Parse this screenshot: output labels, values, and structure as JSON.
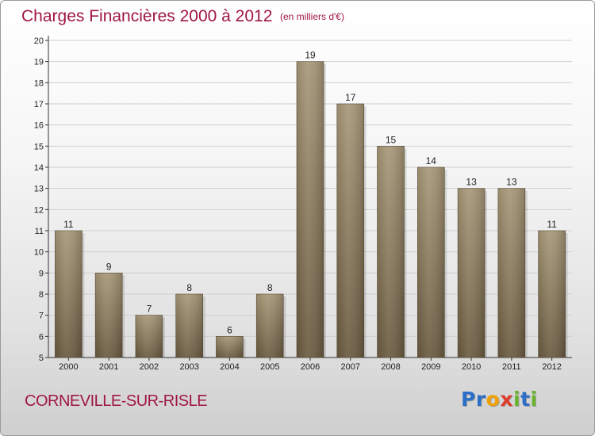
{
  "header": {
    "title": "Charges Financières 2000 à 2012",
    "unit": "(en milliers d'€)"
  },
  "footer": {
    "city": "CORNEVILLE-SUR-RISLE",
    "logo_letters": [
      {
        "char": "P",
        "color": "#2a6ec7"
      },
      {
        "char": "r",
        "color": "#2a6ec7"
      },
      {
        "char": "o",
        "color": "#f0a000"
      },
      {
        "char": "x",
        "color": "#e03a2a"
      },
      {
        "char": "i",
        "color": "#6ab32e"
      },
      {
        "char": "t",
        "color": "#2a6ec7"
      },
      {
        "char": "i",
        "color": "#6ab32e"
      }
    ]
  },
  "colors": {
    "accent": "#a01646",
    "bar_top": "#a89878",
    "bar_bottom": "#6a5a40",
    "grid": "#cfcfcf"
  },
  "chart_data": {
    "type": "bar",
    "categories": [
      "2000",
      "2001",
      "2002",
      "2003",
      "2004",
      "2005",
      "2006",
      "2007",
      "2008",
      "2009",
      "2010",
      "2011",
      "2012"
    ],
    "values": [
      11,
      9,
      7,
      8,
      6,
      8,
      19,
      17,
      15,
      14,
      13,
      13,
      11
    ],
    "data_labels": [
      "11",
      "9",
      "7",
      "8",
      "6",
      "8",
      "19",
      "17",
      "15",
      "14",
      "13",
      "13",
      "11"
    ],
    "ylim": [
      5,
      20
    ],
    "yticks": [
      5,
      6,
      7,
      8,
      9,
      10,
      11,
      12,
      13,
      14,
      15,
      16,
      17,
      18,
      19,
      20
    ],
    "grid": true,
    "legend": "none"
  }
}
